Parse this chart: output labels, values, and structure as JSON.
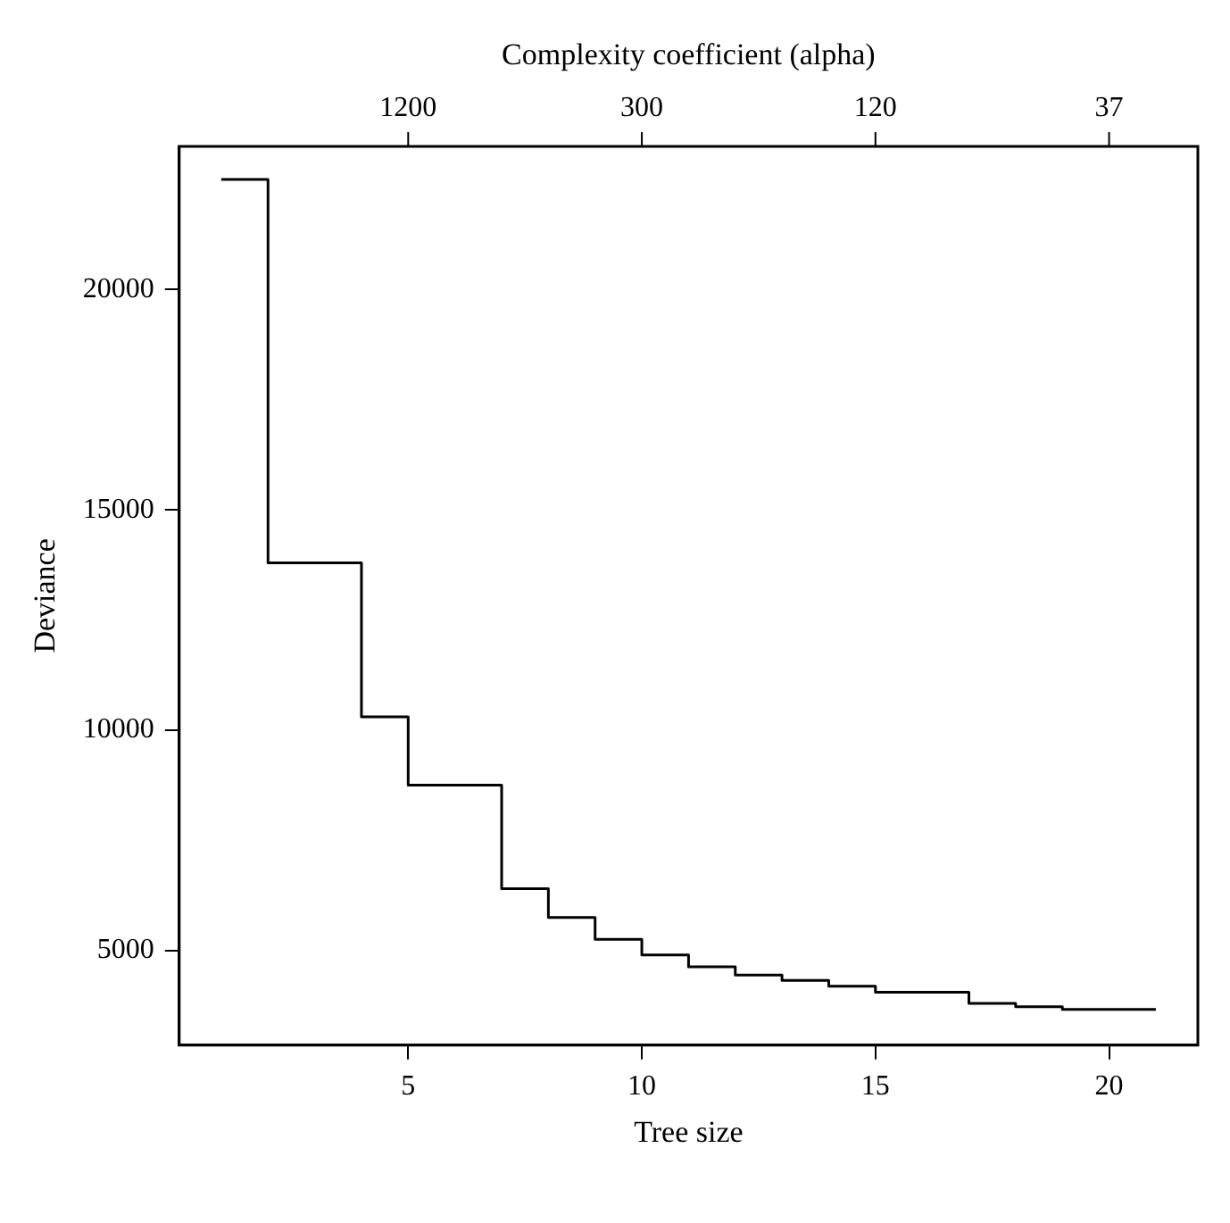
{
  "chart_data": {
    "type": "step",
    "xlabel": "Tree size",
    "ylabel": "Deviance",
    "x2label": "Complexity coefficient (alpha)",
    "x": [
      1,
      2,
      4,
      5,
      7,
      8,
      9,
      10,
      11,
      12,
      13,
      14,
      15,
      17,
      18,
      19,
      20,
      21
    ],
    "series": [
      {
        "color": "#000000",
        "values": [
          22500,
          13800,
          10300,
          8750,
          6400,
          5750,
          5250,
          4900,
          4630,
          4440,
          4320,
          4190,
          4050,
          3800,
          3720,
          3660,
          3660,
          3660
        ]
      }
    ],
    "xlim": [
      0.1,
      21.9
    ],
    "xticks": [
      5,
      10,
      15,
      20
    ],
    "annotations": [
      {
        "text": "1200",
        "x": 5
      },
      {
        "text": "300",
        "x": 10
      },
      {
        "text": "120",
        "x": 15
      },
      {
        "text": "37",
        "x": 20
      }
    ],
    "ylim": [
      2850,
      23250
    ],
    "yticks": [
      5000,
      10000,
      15000,
      20000
    ],
    "grid": false,
    "legend": false,
    "marker": "none",
    "line_style": "solid"
  }
}
